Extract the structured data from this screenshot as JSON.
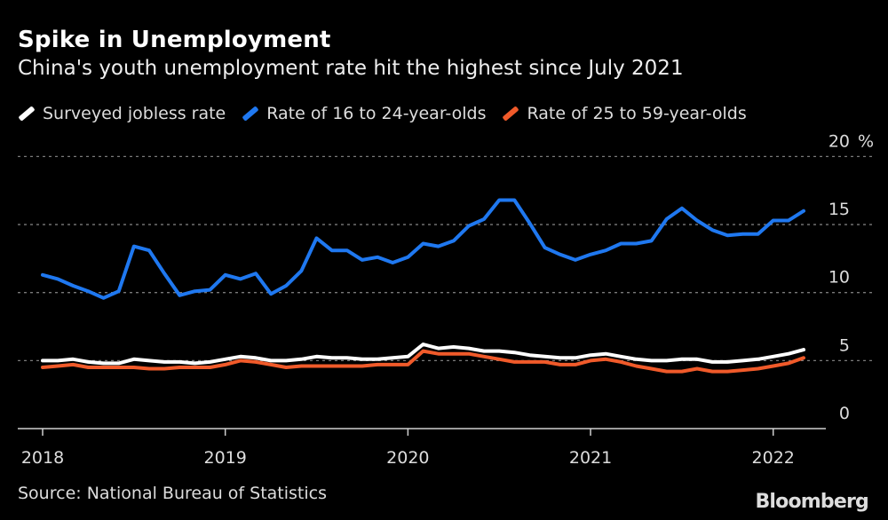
{
  "header": {
    "title": "Spike in Unemployment",
    "subtitle": "China's youth unemployment rate hit the highest since July 2021"
  },
  "footer": {
    "source": "Source: National Bureau of Statistics",
    "logo": "Bloomberg"
  },
  "chart_data": {
    "type": "line",
    "title": "Spike in Unemployment",
    "subtitle": "China's youth unemployment rate hit the highest since July 2021",
    "x_start": "2018-01",
    "x_frequency": "monthly",
    "x_ticks": [
      "2018",
      "2019",
      "2020",
      "2021",
      "2022"
    ],
    "y_ticks": [
      "0",
      "5",
      "10",
      "15",
      "20"
    ],
    "y_unit": "%",
    "ylim": [
      0,
      20
    ],
    "grid": true,
    "legend": "top",
    "series": [
      {
        "name": "Surveyed jobless rate",
        "color": "#ffffff",
        "values": [
          5.0,
          5.0,
          5.1,
          4.9,
          4.8,
          4.8,
          5.1,
          5.0,
          4.9,
          4.9,
          4.8,
          4.9,
          5.1,
          5.3,
          5.2,
          5.0,
          5.0,
          5.1,
          5.3,
          5.2,
          5.2,
          5.1,
          5.1,
          5.2,
          5.3,
          6.2,
          5.9,
          6.0,
          5.9,
          5.7,
          5.7,
          5.6,
          5.4,
          5.3,
          5.2,
          5.2,
          5.4,
          5.5,
          5.3,
          5.1,
          5.0,
          5.0,
          5.1,
          5.1,
          4.9,
          4.9,
          5.0,
          5.1,
          5.3,
          5.5,
          5.8
        ]
      },
      {
        "name": "Rate of 16 to 24-year-olds",
        "color": "#1f78f0",
        "values": [
          11.3,
          11.0,
          10.5,
          10.1,
          9.6,
          10.1,
          13.4,
          13.1,
          11.4,
          9.8,
          10.1,
          10.2,
          11.3,
          11.0,
          11.4,
          9.9,
          10.5,
          11.6,
          14.0,
          13.1,
          13.1,
          12.4,
          12.6,
          12.2,
          12.6,
          13.6,
          13.4,
          13.8,
          14.9,
          15.4,
          16.8,
          16.8,
          15.1,
          13.3,
          12.8,
          12.4,
          12.8,
          13.1,
          13.6,
          13.6,
          13.8,
          15.4,
          16.2,
          15.3,
          14.6,
          14.2,
          14.3,
          14.3,
          15.3,
          15.3,
          16.0
        ]
      },
      {
        "name": "Rate of 25 to 59-year-olds",
        "color": "#f05a2a",
        "values": [
          4.5,
          4.6,
          4.7,
          4.5,
          4.5,
          4.5,
          4.5,
          4.4,
          4.4,
          4.5,
          4.5,
          4.5,
          4.7,
          5.0,
          4.9,
          4.7,
          4.5,
          4.6,
          4.6,
          4.6,
          4.6,
          4.6,
          4.7,
          4.7,
          4.7,
          5.7,
          5.5,
          5.5,
          5.5,
          5.3,
          5.1,
          4.9,
          4.9,
          4.9,
          4.7,
          4.7,
          5.0,
          5.1,
          4.9,
          4.6,
          4.4,
          4.2,
          4.2,
          4.4,
          4.2,
          4.2,
          4.3,
          4.4,
          4.6,
          4.8,
          5.2
        ]
      }
    ]
  }
}
